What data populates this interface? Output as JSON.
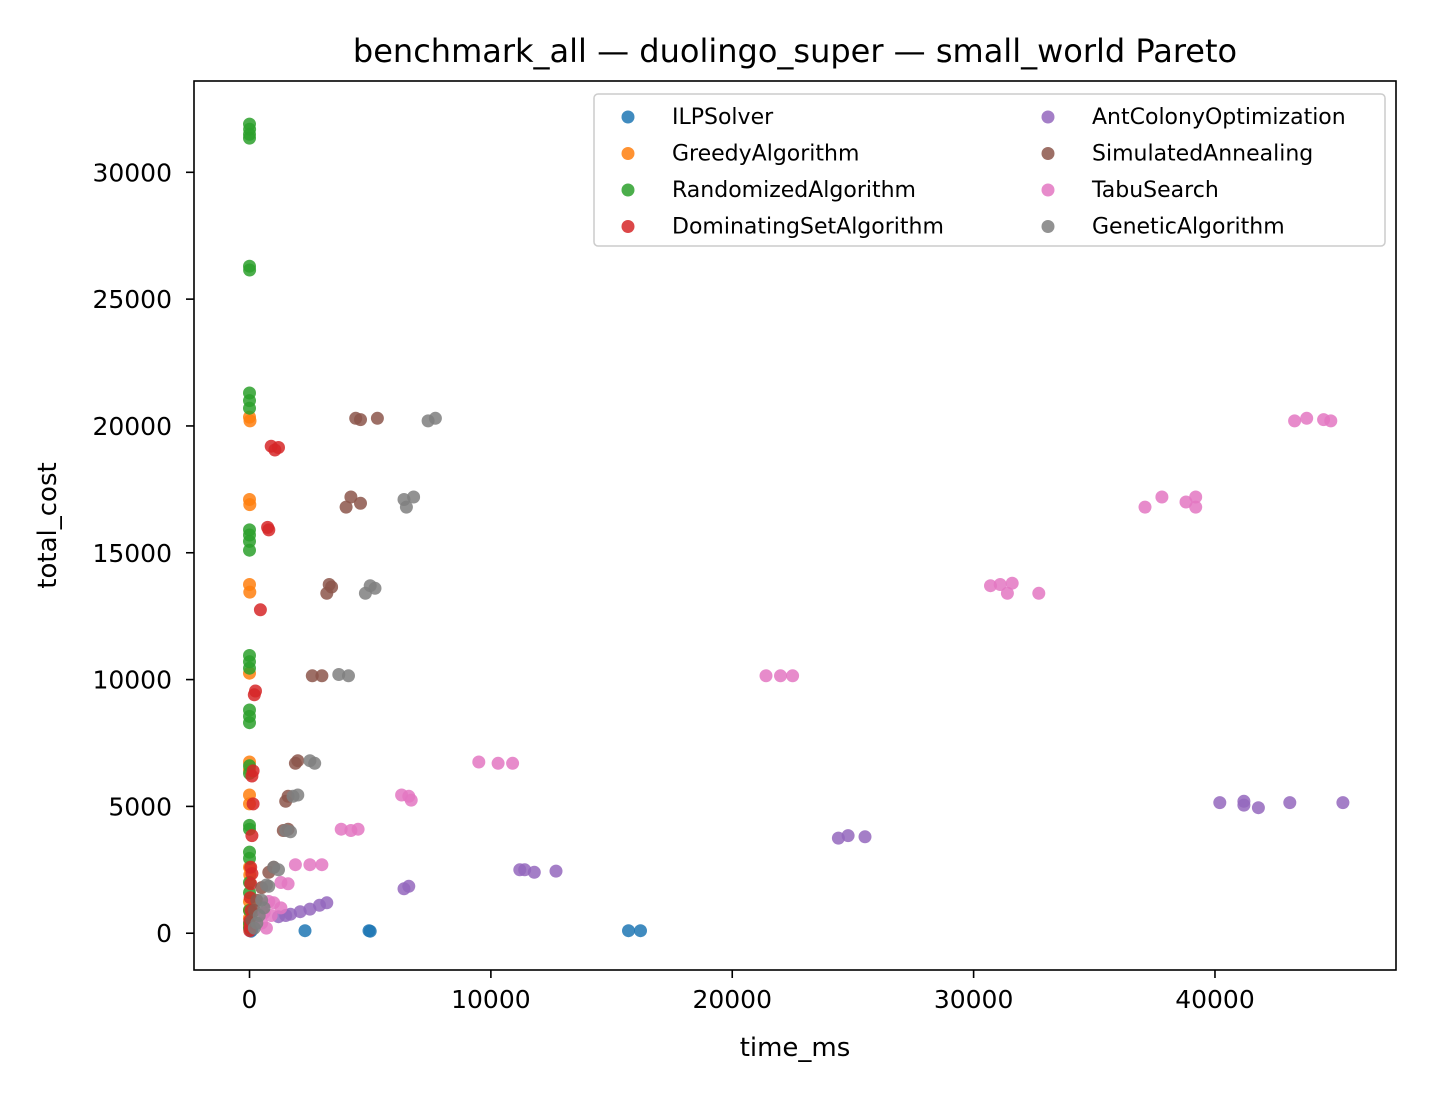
{
  "chart_data": {
    "type": "scatter",
    "title": "benchmark_all — duolingo_super — small_world Pareto",
    "xlabel": "time_ms",
    "ylabel": "total_cost",
    "xlim": [
      -2300,
      47500
    ],
    "ylim": [
      -1450,
      33600
    ],
    "xticks": [
      0,
      10000,
      20000,
      30000,
      40000
    ],
    "yticks": [
      0,
      5000,
      10000,
      15000,
      20000,
      25000,
      30000
    ],
    "xtick_labels": [
      "0",
      "10000",
      "20000",
      "30000",
      "40000"
    ],
    "ytick_labels": [
      "0",
      "5000",
      "10000",
      "15000",
      "20000",
      "25000",
      "30000"
    ],
    "grid": false,
    "legend_position": "top-right",
    "legend_columns": 2,
    "series": [
      {
        "name": "ILPSolver",
        "color": "#1f77b4",
        "points": [
          [
            60,
            80
          ],
          [
            100,
            130
          ],
          [
            2300,
            100
          ],
          [
            4950,
            100
          ],
          [
            5000,
            80
          ],
          [
            15700,
            100
          ],
          [
            16200,
            100
          ]
        ]
      },
      {
        "name": "GreedyAlgorithm",
        "color": "#ff7f0e",
        "points": [
          [
            0,
            20350
          ],
          [
            20,
            20200
          ],
          [
            0,
            17100
          ],
          [
            10,
            16900
          ],
          [
            0,
            13750
          ],
          [
            10,
            13450
          ],
          [
            0,
            10250
          ],
          [
            0,
            6750
          ],
          [
            0,
            6450
          ],
          [
            0,
            5450
          ],
          [
            0,
            5100
          ],
          [
            0,
            2600
          ],
          [
            10,
            2300
          ],
          [
            0,
            1250
          ],
          [
            0,
            900
          ],
          [
            0,
            600
          ],
          [
            0,
            300
          ]
        ]
      },
      {
        "name": "RandomizedAlgorithm",
        "color": "#2ca02c",
        "points": [
          [
            0,
            31900
          ],
          [
            5,
            31700
          ],
          [
            0,
            31500
          ],
          [
            0,
            31350
          ],
          [
            0,
            26300
          ],
          [
            5,
            26150
          ],
          [
            0,
            21300
          ],
          [
            0,
            21000
          ],
          [
            0,
            20700
          ],
          [
            0,
            15900
          ],
          [
            0,
            15700
          ],
          [
            0,
            15450
          ],
          [
            0,
            15100
          ],
          [
            0,
            10950
          ],
          [
            0,
            10700
          ],
          [
            0,
            10450
          ],
          [
            0,
            8800
          ],
          [
            0,
            8550
          ],
          [
            0,
            8300
          ],
          [
            0,
            6600
          ],
          [
            0,
            6300
          ],
          [
            0,
            4250
          ],
          [
            0,
            4100
          ],
          [
            0,
            3200
          ],
          [
            0,
            2950
          ],
          [
            0,
            2000
          ],
          [
            0,
            1600
          ],
          [
            0,
            900
          ],
          [
            0,
            400
          ],
          [
            0,
            200
          ]
        ]
      },
      {
        "name": "DominatingSetAlgorithm",
        "color": "#d62728",
        "points": [
          [
            900,
            19200
          ],
          [
            1050,
            19050
          ],
          [
            1200,
            19150
          ],
          [
            750,
            16000
          ],
          [
            800,
            15900
          ],
          [
            450,
            12750
          ],
          [
            250,
            9550
          ],
          [
            200,
            9400
          ],
          [
            150,
            6400
          ],
          [
            100,
            6200
          ],
          [
            150,
            5100
          ],
          [
            100,
            3850
          ],
          [
            50,
            2600
          ],
          [
            100,
            2350
          ],
          [
            50,
            1950
          ],
          [
            30,
            1400
          ],
          [
            60,
            900
          ],
          [
            10,
            500
          ],
          [
            30,
            250
          ],
          [
            10,
            100
          ]
        ]
      },
      {
        "name": "AntColonyOptimization",
        "color": "#9467bd",
        "points": [
          [
            40200,
            5150
          ],
          [
            41200,
            5200
          ],
          [
            41200,
            5050
          ],
          [
            41800,
            4950
          ],
          [
            43100,
            5150
          ],
          [
            45300,
            5150
          ],
          [
            24400,
            3750
          ],
          [
            24800,
            3850
          ],
          [
            25500,
            3800
          ],
          [
            6400,
            1750
          ],
          [
            6600,
            1850
          ],
          [
            11200,
            2500
          ],
          [
            11400,
            2500
          ],
          [
            11800,
            2400
          ],
          [
            12700,
            2450
          ],
          [
            3200,
            1200
          ],
          [
            2900,
            1100
          ],
          [
            2500,
            950
          ],
          [
            2100,
            850
          ],
          [
            1700,
            750
          ],
          [
            1500,
            700
          ],
          [
            1200,
            650
          ]
        ]
      },
      {
        "name": "SimulatedAnnealing",
        "color": "#8c564b",
        "points": [
          [
            4400,
            20300
          ],
          [
            4600,
            20250
          ],
          [
            5300,
            20300
          ],
          [
            4200,
            17200
          ],
          [
            4000,
            16800
          ],
          [
            4600,
            16950
          ],
          [
            3300,
            13750
          ],
          [
            3200,
            13400
          ],
          [
            3400,
            13650
          ],
          [
            2600,
            10150
          ],
          [
            3000,
            10150
          ],
          [
            1900,
            6700
          ],
          [
            2000,
            6800
          ],
          [
            1600,
            5400
          ],
          [
            1500,
            5200
          ],
          [
            1400,
            4050
          ],
          [
            1600,
            4100
          ],
          [
            1000,
            2600
          ],
          [
            800,
            2400
          ],
          [
            500,
            1800
          ],
          [
            300,
            1300
          ],
          [
            200,
            900
          ],
          [
            100,
            500
          ]
        ]
      },
      {
        "name": "TabuSearch",
        "color": "#e377c2",
        "points": [
          [
            43300,
            20200
          ],
          [
            43800,
            20300
          ],
          [
            44500,
            20250
          ],
          [
            44800,
            20200
          ],
          [
            37100,
            16800
          ],
          [
            37800,
            17200
          ],
          [
            38800,
            17000
          ],
          [
            39200,
            16800
          ],
          [
            39200,
            17200
          ],
          [
            30700,
            13700
          ],
          [
            31100,
            13750
          ],
          [
            31400,
            13400
          ],
          [
            31600,
            13800
          ],
          [
            32700,
            13400
          ],
          [
            21400,
            10150
          ],
          [
            22000,
            10150
          ],
          [
            22500,
            10150
          ],
          [
            9500,
            6750
          ],
          [
            10300,
            6700
          ],
          [
            10900,
            6700
          ],
          [
            6300,
            5450
          ],
          [
            6600,
            5400
          ],
          [
            6700,
            5250
          ],
          [
            3800,
            4100
          ],
          [
            4200,
            4050
          ],
          [
            4500,
            4100
          ],
          [
            1900,
            2700
          ],
          [
            2500,
            2700
          ],
          [
            3000,
            2700
          ],
          [
            1300,
            2000
          ],
          [
            1600,
            1950
          ],
          [
            800,
            1250
          ],
          [
            1000,
            1200
          ],
          [
            1300,
            1000
          ],
          [
            600,
            800
          ],
          [
            900,
            700
          ],
          [
            500,
            400
          ],
          [
            700,
            200
          ]
        ]
      },
      {
        "name": "GeneticAlgorithm",
        "color": "#7f7f7f",
        "points": [
          [
            7400,
            20200
          ],
          [
            7700,
            20300
          ],
          [
            6400,
            17100
          ],
          [
            6800,
            17200
          ],
          [
            6500,
            16800
          ],
          [
            5000,
            13700
          ],
          [
            5200,
            13600
          ],
          [
            4800,
            13400
          ],
          [
            3700,
            10200
          ],
          [
            4100,
            10150
          ],
          [
            2500,
            6800
          ],
          [
            2700,
            6700
          ],
          [
            1800,
            5400
          ],
          [
            2000,
            5450
          ],
          [
            1500,
            4050
          ],
          [
            1700,
            4000
          ],
          [
            1000,
            2600
          ],
          [
            1200,
            2500
          ],
          [
            700,
            1900
          ],
          [
            800,
            1850
          ],
          [
            500,
            1300
          ],
          [
            600,
            1000
          ],
          [
            400,
            700
          ],
          [
            300,
            400
          ],
          [
            200,
            200
          ]
        ]
      }
    ]
  }
}
